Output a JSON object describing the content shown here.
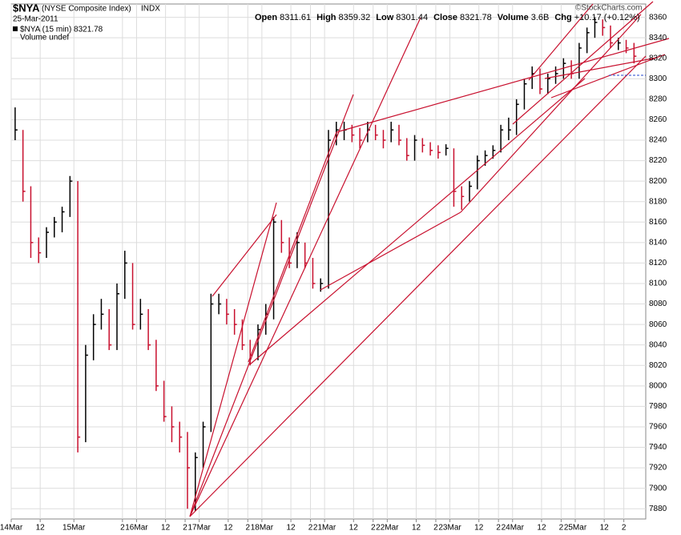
{
  "chart_data": {
    "type": "ohlc",
    "title": "$NYA",
    "subtitle": "(NYSE Composite Index)",
    "exchange": "INDX",
    "date": "25-Mar-2011",
    "quote": [
      {
        "label": "Open",
        "value": "8311.61"
      },
      {
        "label": "High",
        "value": "8359.32"
      },
      {
        "label": "Low",
        "value": "8301.44"
      },
      {
        "label": "Close",
        "value": "8321.78"
      },
      {
        "label": "Volume",
        "value": "3.6B"
      },
      {
        "label": "Chg",
        "value": "+10.17 (+0.12%)"
      }
    ],
    "credit": "©StockCharts.com",
    "legend_label": "$NYA (15 min) 8321.78",
    "volume_label": "Volume undef",
    "up_color": "#000000",
    "down_color": "#c8102e",
    "grid": true,
    "xlim": [
      0,
      81
    ],
    "ylim": [
      7870,
      8373
    ],
    "yticks": [
      7880,
      7900,
      7920,
      7940,
      7960,
      7980,
      8000,
      8020,
      8040,
      8060,
      8080,
      8100,
      8120,
      8140,
      8160,
      8180,
      8200,
      8220,
      8240,
      8260,
      8280,
      8300,
      8320,
      8340,
      8360
    ],
    "xticks": [
      {
        "value": 0,
        "label": "14Mar"
      },
      {
        "value": 3.7,
        "label": "12"
      },
      {
        "value": 8,
        "label": "15Mar"
      },
      {
        "value": 14.2,
        "label": "2"
      },
      {
        "value": 16,
        "label": "16Mar"
      },
      {
        "value": 19.7,
        "label": "12"
      },
      {
        "value": 22.2,
        "label": "2"
      },
      {
        "value": 24,
        "label": "17Mar"
      },
      {
        "value": 27.7,
        "label": "12"
      },
      {
        "value": 30.2,
        "label": "2"
      },
      {
        "value": 32,
        "label": "18Mar"
      },
      {
        "value": 35.7,
        "label": "12"
      },
      {
        "value": 38.2,
        "label": "2"
      },
      {
        "value": 40,
        "label": "21Mar"
      },
      {
        "value": 43.7,
        "label": "12"
      },
      {
        "value": 46.2,
        "label": "2"
      },
      {
        "value": 48,
        "label": "22Mar"
      },
      {
        "value": 51.7,
        "label": "12"
      },
      {
        "value": 54.2,
        "label": "2"
      },
      {
        "value": 56,
        "label": "23Mar"
      },
      {
        "value": 59.7,
        "label": "12"
      },
      {
        "value": 62.2,
        "label": "2"
      },
      {
        "value": 64,
        "label": "24Mar"
      },
      {
        "value": 67.7,
        "label": "12"
      },
      {
        "value": 70.2,
        "label": "2"
      },
      {
        "value": 72,
        "label": "25Mar"
      },
      {
        "value": 75.7,
        "label": "12"
      },
      {
        "value": 78.2,
        "label": "2"
      }
    ],
    "x": [
      0.5,
      1.5,
      2.5,
      3.5,
      4.5,
      5.5,
      6.5,
      7.5,
      8.5,
      9.5,
      10.5,
      11.5,
      12.5,
      13.5,
      14.5,
      15.5,
      16.5,
      17.5,
      18.5,
      19.5,
      20.5,
      21.5,
      22.5,
      23.5,
      24.5,
      25.5,
      26.5,
      27.5,
      28.5,
      29.5,
      30.5,
      31.5,
      32.5,
      33.5,
      34.5,
      35.5,
      36.5,
      37.5,
      38.5,
      39.5,
      40.5,
      41.5,
      42.5,
      43.5,
      44.5,
      45.5,
      46.5,
      47.5,
      48.5,
      49.5,
      50.5,
      51.5,
      52.5,
      53.5,
      54.5,
      55.5,
      56.5,
      57.5,
      58.5,
      59.5,
      60.5,
      61.5,
      62.5,
      63.5,
      64.5,
      65.5,
      66.5,
      67.5,
      68.5,
      69.5,
      70.5,
      71.5,
      72.5,
      73.5,
      74.5,
      75.5,
      76.5,
      77.5,
      78.5,
      79.5
    ],
    "high": [
      8272,
      8250,
      8195,
      8145,
      8155,
      8165,
      8175,
      8205,
      8200,
      8040,
      8070,
      8085,
      8075,
      8100,
      8132,
      8120,
      8085,
      8075,
      8045,
      8005,
      7980,
      7965,
      7955,
      7935,
      7965,
      8090,
      8090,
      8085,
      8075,
      8065,
      8045,
      8060,
      8080,
      8165,
      8162,
      8145,
      8150,
      8140,
      8125,
      8105,
      8250,
      8258,
      8258,
      8255,
      8252,
      8258,
      8255,
      8250,
      8258,
      8255,
      8242,
      8245,
      8242,
      8238,
      8235,
      8236,
      8232,
      8195,
      8200,
      8225,
      8230,
      8235,
      8255,
      8262,
      8280,
      8300,
      8312,
      8310,
      8305,
      8312,
      8320,
      8318,
      8335,
      8350,
      8360,
      8358,
      8352,
      8340,
      8338,
      8335
    ],
    "low": [
      8240,
      8180,
      8125,
      8120,
      8125,
      8145,
      8150,
      8165,
      7935,
      7945,
      8025,
      8055,
      8035,
      8035,
      8085,
      8055,
      8055,
      8035,
      7995,
      7965,
      7945,
      7935,
      7880,
      7878,
      7920,
      7955,
      8070,
      8060,
      8050,
      8035,
      8020,
      8025,
      8050,
      8065,
      8130,
      8115,
      8115,
      8115,
      8095,
      8092,
      8095,
      8235,
      8240,
      8238,
      8232,
      8238,
      8240,
      8232,
      8238,
      8235,
      8220,
      8220,
      8228,
      8225,
      8222,
      8225,
      8175,
      8172,
      8180,
      8192,
      8215,
      8222,
      8228,
      8240,
      8245,
      8270,
      8290,
      8285,
      8285,
      8295,
      8300,
      8300,
      8300,
      8325,
      8340,
      8342,
      8330,
      8328,
      8325,
      8315
    ],
    "close": [
      8250,
      8190,
      8140,
      8130,
      8150,
      8160,
      8170,
      8200,
      7950,
      8030,
      8060,
      8070,
      8040,
      8090,
      8120,
      8060,
      8070,
      8040,
      8000,
      7970,
      7960,
      7950,
      7920,
      7930,
      7960,
      8080,
      8080,
      8070,
      8060,
      8040,
      8030,
      8055,
      8070,
      8160,
      8140,
      8120,
      8140,
      8120,
      8100,
      8100,
      8240,
      8250,
      8250,
      8245,
      8240,
      8250,
      8245,
      8240,
      8250,
      8240,
      8225,
      8240,
      8235,
      8230,
      8228,
      8232,
      8190,
      8185,
      8195,
      8220,
      8225,
      8230,
      8250,
      8250,
      8275,
      8295,
      8305,
      8290,
      8300,
      8305,
      8315,
      8305,
      8330,
      8345,
      8355,
      8350,
      8335,
      8335,
      8330,
      8322
    ]
  }
}
